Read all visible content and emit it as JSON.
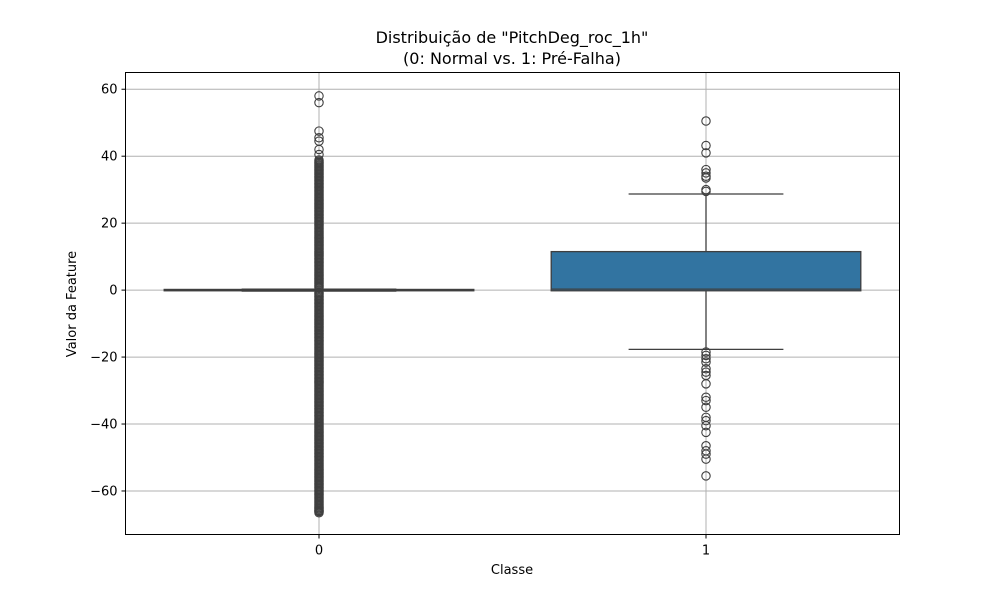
{
  "chart_data": {
    "type": "box",
    "title": "Distribuição de \"PitchDeg_roc_1h\"",
    "subtitle": "(0: Normal vs. 1: Pré-Falha)",
    "xlabel": "Classe",
    "ylabel": "Valor da Feature",
    "categories": [
      "0",
      "1"
    ],
    "ylim": [
      -73,
      65
    ],
    "yticks": [
      -60,
      -40,
      -20,
      0,
      20,
      40,
      60
    ],
    "ytick_labels": [
      "−60",
      "−40",
      "−20",
      "0",
      "20",
      "40",
      "60"
    ],
    "grid": true,
    "colors": {
      "box_fill": "#3274a1",
      "line": "#3f3f3f",
      "grid": "#b0b0b0"
    },
    "boxes": [
      {
        "category": "0",
        "q1": -0.2,
        "median": 0,
        "q3": 0.2,
        "whisker_low": -0.3,
        "whisker_high": 0.3,
        "outliers_dense_range": [
          -66.5,
          39
        ],
        "outliers_sparse": [
          58,
          56,
          47.5,
          45.5,
          44.5,
          42,
          40.5,
          -66
        ]
      },
      {
        "category": "1",
        "q1": -0.2,
        "median": 0.3,
        "q3": 11.5,
        "whisker_low": -17.7,
        "whisker_high": 28.7,
        "outliers": [
          50.5,
          43.2,
          41,
          36,
          35,
          34,
          33.5,
          30,
          29.5,
          -18.5,
          -19.5,
          -20.5,
          -21.5,
          -23.5,
          -24.5,
          -25.5,
          -28,
          -32,
          -33,
          -35,
          -38,
          -39,
          -40.5,
          -42.5,
          -46.5,
          -48,
          -49,
          -50.5,
          -55.5
        ]
      }
    ]
  }
}
